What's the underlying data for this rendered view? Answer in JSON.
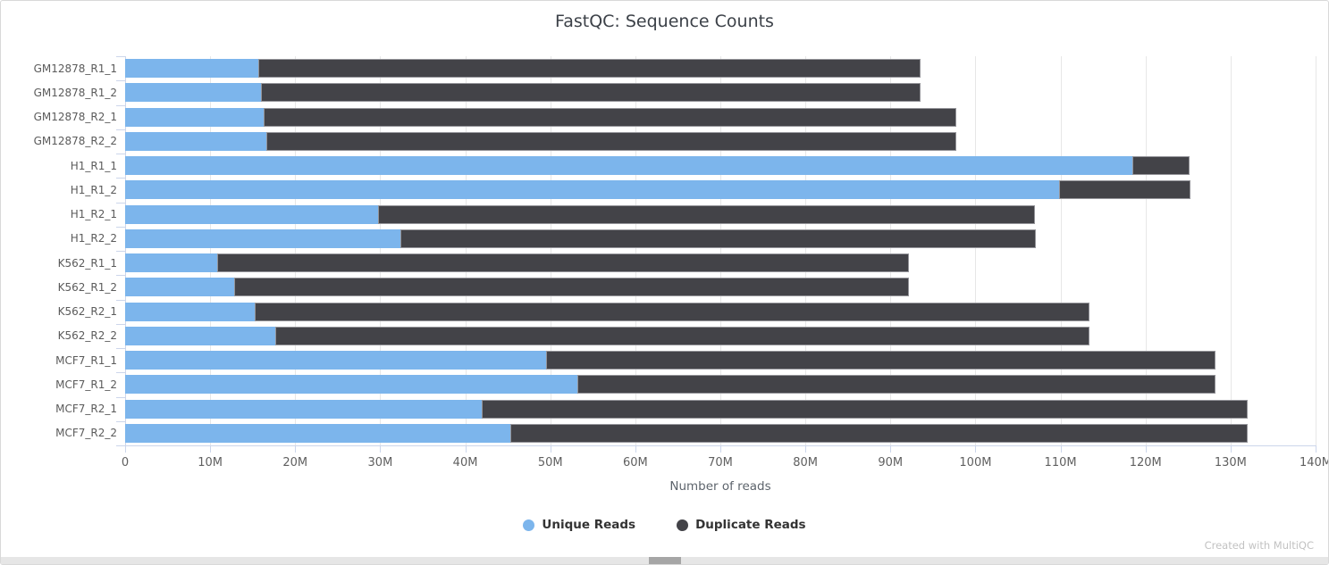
{
  "panel": {
    "watermark": "Created with MultiQC"
  },
  "chart_data": {
    "type": "bar",
    "orientation": "horizontal",
    "stacked": true,
    "title": "FastQC: Sequence Counts",
    "xlabel": "Number of reads",
    "ylabel": "",
    "grid": true,
    "legend_position": "bottom",
    "xmax_millions": 140,
    "x_tick_interval_millions": 10,
    "x_tick_labels": [
      "0",
      "10M",
      "20M",
      "30M",
      "40M",
      "50M",
      "60M",
      "70M",
      "80M",
      "90M",
      "100M",
      "110M",
      "120M",
      "130M",
      "140M"
    ],
    "categories": [
      "GM12878_R1_1",
      "GM12878_R1_2",
      "GM12878_R2_1",
      "GM12878_R2_2",
      "H1_R1_1",
      "H1_R1_2",
      "H1_R2_1",
      "H1_R2_2",
      "K562_R1_1",
      "K562_R1_2",
      "K562_R2_1",
      "K562_R2_2",
      "MCF7_R1_1",
      "MCF7_R1_2",
      "MCF7_R2_1",
      "MCF7_R2_2"
    ],
    "series": [
      {
        "name": "Unique Reads",
        "color": "#7cb5ec",
        "values_millions": [
          15.7,
          16.0,
          16.3,
          16.6,
          118.5,
          109.8,
          29.7,
          32.4,
          10.8,
          12.8,
          15.2,
          17.7,
          49.5,
          53.2,
          41.9,
          45.3
        ]
      },
      {
        "name": "Duplicate Reads",
        "color": "#434348",
        "values_millions": [
          77.8,
          77.5,
          81.4,
          81.1,
          6.7,
          15.5,
          77.3,
          74.7,
          81.4,
          79.4,
          98.2,
          95.7,
          78.7,
          75.0,
          90.1,
          86.7
        ]
      }
    ]
  },
  "colors": {
    "unique_reads": "#7cb5ec",
    "duplicate_reads": "#434348",
    "gridline": "#e7e7e7",
    "axis_line": "#ccd6eb",
    "panel_border": "#d9d9d9"
  }
}
